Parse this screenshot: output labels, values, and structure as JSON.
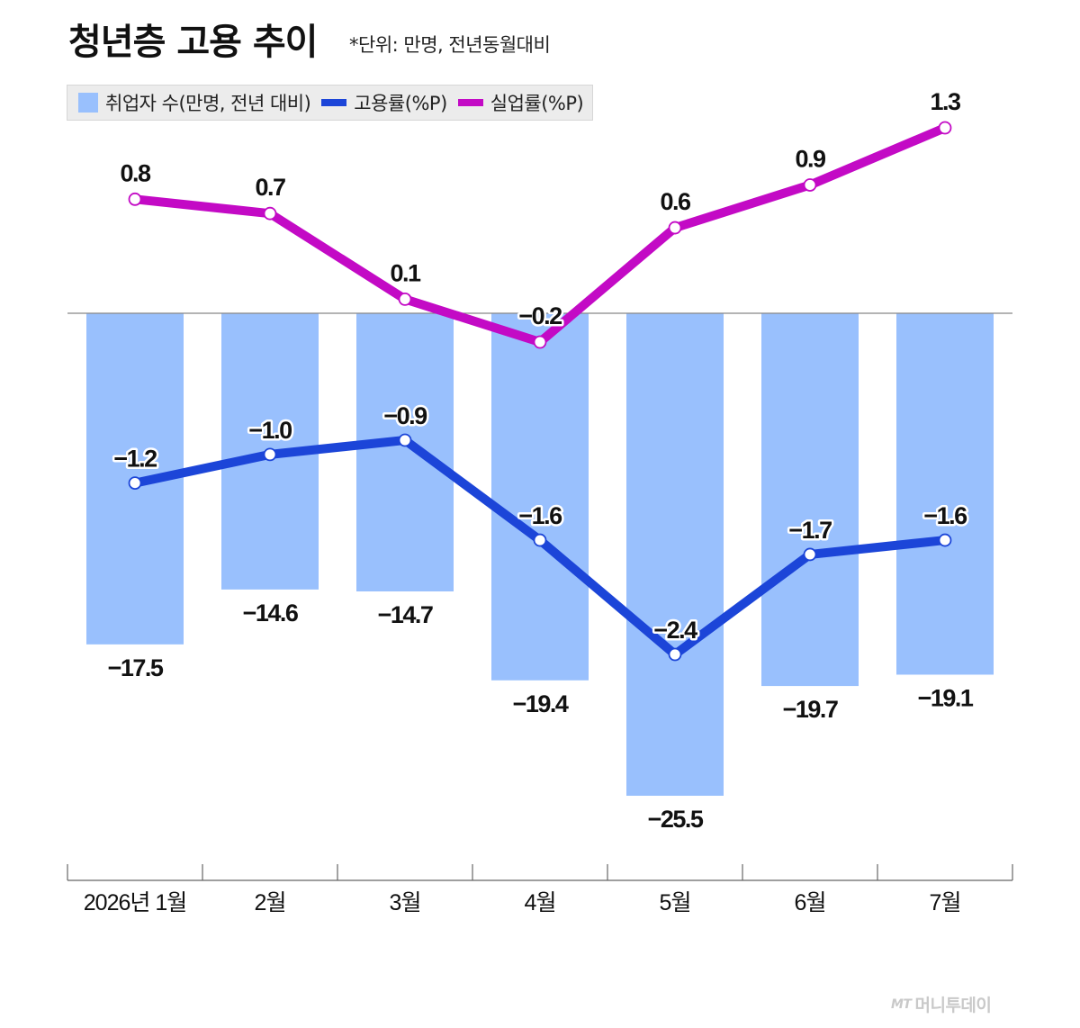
{
  "header": {
    "title": "청년층 고용 추이",
    "unit_note": "*단위: 만명, 전년동월대비"
  },
  "legend": {
    "items": [
      {
        "label": "취업자 수(만명, 전년 대비)",
        "color": "#99c0fd",
        "kind": "bar"
      },
      {
        "label": "고용률(%P)",
        "color": "#1c45d8",
        "kind": "line"
      },
      {
        "label": "실업률(%P)",
        "color": "#c30ac5",
        "kind": "line"
      }
    ]
  },
  "watermark": {
    "logo": "MT",
    "text": "머니투데이"
  },
  "chart_data": {
    "type": "bar",
    "categories": [
      "2026년 1월",
      "2월",
      "3월",
      "4월",
      "5월",
      "6월",
      "7월"
    ],
    "bar_labels": [
      "−17.5",
      "−14.6",
      "−14.7",
      "−19.4",
      "−25.5",
      "−19.7",
      "−19.1"
    ],
    "series": [
      {
        "name": "취업자 수(만명, 전년 대비)",
        "type": "bar",
        "color": "#99c0fd",
        "values": [
          -17.5,
          -14.6,
          -14.7,
          -19.4,
          -25.5,
          -19.7,
          -19.1
        ]
      },
      {
        "name": "고용률(%P)",
        "type": "line",
        "color": "#1c45d8",
        "values": [
          -1.2,
          -1.0,
          -0.9,
          -1.6,
          -2.4,
          -1.7,
          -1.6
        ],
        "labels": [
          "−1.2",
          "−1.0",
          "−0.9",
          "−1.6",
          "−2.4",
          "−1.7",
          "−1.6"
        ]
      },
      {
        "name": "실업률(%P)",
        "type": "line",
        "color": "#c30ac5",
        "values": [
          0.8,
          0.7,
          0.1,
          -0.2,
          0.6,
          0.9,
          1.3
        ],
        "labels": [
          "0.8",
          "0.7",
          "0.1",
          "−0.2",
          "0.6",
          "0.9",
          "1.3"
        ]
      }
    ],
    "ylim_bar": [
      -25.5,
      0
    ],
    "grid": false,
    "legend_position": "top-left"
  }
}
